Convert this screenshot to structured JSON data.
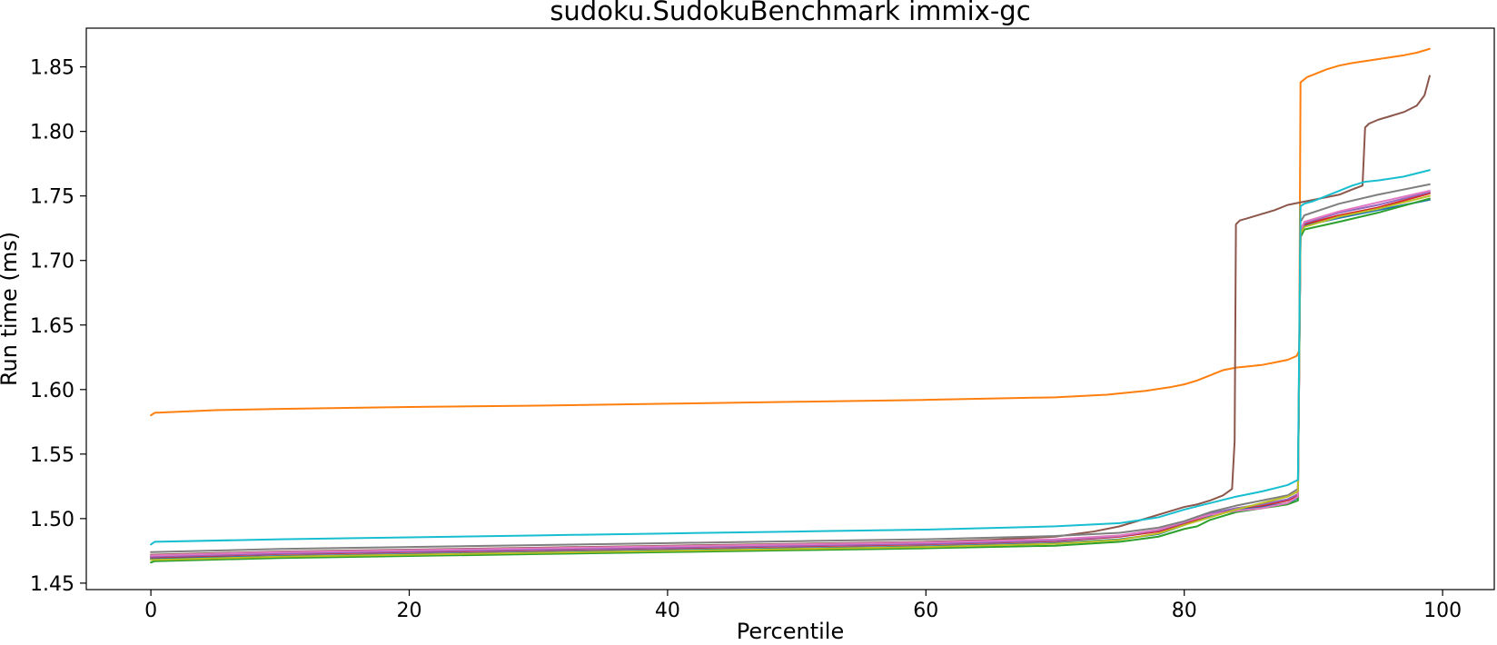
{
  "chart_data": {
    "type": "line",
    "title": "sudoku.SudokuBenchmark immix-gc",
    "xlabel": "Percentile",
    "ylabel": "Run time (ms)",
    "xlim": [
      -5,
      104
    ],
    "ylim": [
      1.445,
      1.88
    ],
    "x_ticks": [
      0,
      20,
      40,
      60,
      80,
      100
    ],
    "y_ticks": [
      1.45,
      1.5,
      1.55,
      1.6,
      1.65,
      1.7,
      1.75,
      1.8,
      1.85
    ],
    "x_tick_labels": [
      "0",
      "20",
      "40",
      "60",
      "80",
      "100"
    ],
    "y_tick_labels": [
      "1.45",
      "1.50",
      "1.55",
      "1.60",
      "1.65",
      "1.70",
      "1.75",
      "1.80",
      "1.85"
    ],
    "grid": false,
    "legend": "none",
    "series": [
      {
        "color": "#1f77b4",
        "points": [
          [
            0,
            1.469
          ],
          [
            10,
            1.471
          ],
          [
            20,
            1.4725
          ],
          [
            30,
            1.474
          ],
          [
            40,
            1.4755
          ],
          [
            50,
            1.477
          ],
          [
            60,
            1.4785
          ],
          [
            70,
            1.481
          ],
          [
            75,
            1.484
          ],
          [
            78,
            1.488
          ],
          [
            80,
            1.495
          ],
          [
            82,
            1.502
          ],
          [
            84,
            1.507
          ],
          [
            86,
            1.509
          ],
          [
            88,
            1.512
          ],
          [
            88.8,
            1.516
          ],
          [
            89,
            1.72
          ],
          [
            89.3,
            1.727
          ],
          [
            92,
            1.733
          ],
          [
            95,
            1.739
          ],
          [
            99,
            1.747
          ]
        ]
      },
      {
        "color": "#ff7f0e",
        "points": [
          [
            0,
            1.58
          ],
          [
            0.3,
            1.582
          ],
          [
            5,
            1.584
          ],
          [
            10,
            1.585
          ],
          [
            20,
            1.5865
          ],
          [
            30,
            1.5875
          ],
          [
            40,
            1.589
          ],
          [
            50,
            1.5905
          ],
          [
            60,
            1.592
          ],
          [
            70,
            1.594
          ],
          [
            74,
            1.596
          ],
          [
            77,
            1.599
          ],
          [
            79,
            1.602
          ],
          [
            80,
            1.604
          ],
          [
            81,
            1.607
          ],
          [
            82,
            1.611
          ],
          [
            83,
            1.615
          ],
          [
            84,
            1.617
          ],
          [
            85,
            1.618
          ],
          [
            86,
            1.619
          ],
          [
            87,
            1.621
          ],
          [
            88,
            1.623
          ],
          [
            88.7,
            1.626
          ],
          [
            88.9,
            1.63
          ],
          [
            89,
            1.838
          ],
          [
            89.5,
            1.842
          ],
          [
            90,
            1.844
          ],
          [
            91,
            1.848
          ],
          [
            92,
            1.851
          ],
          [
            93,
            1.853
          ],
          [
            95,
            1.856
          ],
          [
            97,
            1.859
          ],
          [
            98,
            1.861
          ],
          [
            99,
            1.864
          ]
        ]
      },
      {
        "color": "#2ca02c",
        "points": [
          [
            0,
            1.466
          ],
          [
            0.3,
            1.467
          ],
          [
            10,
            1.4695
          ],
          [
            20,
            1.471
          ],
          [
            30,
            1.4725
          ],
          [
            40,
            1.474
          ],
          [
            50,
            1.4755
          ],
          [
            60,
            1.477
          ],
          [
            70,
            1.479
          ],
          [
            75,
            1.482
          ],
          [
            78,
            1.486
          ],
          [
            80,
            1.492
          ],
          [
            81,
            1.494
          ],
          [
            82,
            1.499
          ],
          [
            84,
            1.505
          ],
          [
            86,
            1.508
          ],
          [
            88,
            1.511
          ],
          [
            88.8,
            1.514
          ],
          [
            89,
            1.718
          ],
          [
            89.3,
            1.724
          ],
          [
            92,
            1.73
          ],
          [
            95,
            1.737
          ],
          [
            99,
            1.748
          ]
        ]
      },
      {
        "color": "#d62728",
        "points": [
          [
            0,
            1.47
          ],
          [
            10,
            1.4725
          ],
          [
            20,
            1.474
          ],
          [
            30,
            1.4755
          ],
          [
            40,
            1.477
          ],
          [
            50,
            1.4785
          ],
          [
            60,
            1.48
          ],
          [
            70,
            1.4825
          ],
          [
            75,
            1.486
          ],
          [
            78,
            1.49
          ],
          [
            80,
            1.496
          ],
          [
            82,
            1.503
          ],
          [
            84,
            1.508
          ],
          [
            86,
            1.51
          ],
          [
            88,
            1.514
          ],
          [
            88.8,
            1.518
          ],
          [
            89,
            1.722
          ],
          [
            89.3,
            1.728
          ],
          [
            92,
            1.735
          ],
          [
            95,
            1.741
          ],
          [
            99,
            1.752
          ]
        ]
      },
      {
        "color": "#9467bd",
        "points": [
          [
            0,
            1.4705
          ],
          [
            10,
            1.473
          ],
          [
            20,
            1.4745
          ],
          [
            30,
            1.476
          ],
          [
            40,
            1.4775
          ],
          [
            50,
            1.479
          ],
          [
            60,
            1.4805
          ],
          [
            70,
            1.483
          ],
          [
            75,
            1.4865
          ],
          [
            78,
            1.491
          ],
          [
            80,
            1.497
          ],
          [
            82,
            1.504
          ],
          [
            84,
            1.508
          ],
          [
            86,
            1.511
          ],
          [
            88,
            1.515
          ],
          [
            88.8,
            1.519
          ],
          [
            89,
            1.723
          ],
          [
            89.3,
            1.729
          ],
          [
            92,
            1.737
          ],
          [
            95,
            1.743
          ],
          [
            99,
            1.753
          ]
        ]
      },
      {
        "color": "#8c564b",
        "points": [
          [
            0,
            1.472
          ],
          [
            10,
            1.4745
          ],
          [
            20,
            1.476
          ],
          [
            30,
            1.4775
          ],
          [
            40,
            1.479
          ],
          [
            50,
            1.4805
          ],
          [
            60,
            1.482
          ],
          [
            65,
            1.4835
          ],
          [
            70,
            1.486
          ],
          [
            73,
            1.49
          ],
          [
            75,
            1.494
          ],
          [
            77,
            1.5
          ],
          [
            79,
            1.506
          ],
          [
            80,
            1.509
          ],
          [
            81,
            1.511
          ],
          [
            82,
            1.514
          ],
          [
            83,
            1.518
          ],
          [
            83.7,
            1.523
          ],
          [
            83.9,
            1.56
          ],
          [
            84,
            1.728
          ],
          [
            84.3,
            1.731
          ],
          [
            85,
            1.733
          ],
          [
            86,
            1.736
          ],
          [
            87,
            1.739
          ],
          [
            88,
            1.743
          ],
          [
            89,
            1.745
          ],
          [
            90,
            1.747
          ],
          [
            91,
            1.749
          ],
          [
            92,
            1.751
          ],
          [
            93,
            1.755
          ],
          [
            93.8,
            1.758
          ],
          [
            94,
            1.803
          ],
          [
            94.3,
            1.806
          ],
          [
            95,
            1.809
          ],
          [
            96,
            1.812
          ],
          [
            97,
            1.815
          ],
          [
            98,
            1.82
          ],
          [
            98.6,
            1.828
          ],
          [
            99,
            1.843
          ]
        ]
      },
      {
        "color": "#e377c2",
        "points": [
          [
            0,
            1.4715
          ],
          [
            10,
            1.474
          ],
          [
            20,
            1.4755
          ],
          [
            30,
            1.477
          ],
          [
            40,
            1.4785
          ],
          [
            50,
            1.48
          ],
          [
            60,
            1.4815
          ],
          [
            70,
            1.484
          ],
          [
            75,
            1.487
          ],
          [
            78,
            1.4915
          ],
          [
            80,
            1.4975
          ],
          [
            82,
            1.503
          ],
          [
            84,
            1.506
          ],
          [
            86,
            1.508
          ],
          [
            88,
            1.512
          ],
          [
            88.8,
            1.517
          ],
          [
            89,
            1.724
          ],
          [
            89.3,
            1.73
          ],
          [
            92,
            1.738
          ],
          [
            95,
            1.745
          ],
          [
            99,
            1.754
          ]
        ]
      },
      {
        "color": "#7f7f7f",
        "points": [
          [
            0,
            1.474
          ],
          [
            10,
            1.4765
          ],
          [
            20,
            1.478
          ],
          [
            30,
            1.4795
          ],
          [
            40,
            1.481
          ],
          [
            50,
            1.4825
          ],
          [
            60,
            1.484
          ],
          [
            70,
            1.4865
          ],
          [
            75,
            1.489
          ],
          [
            78,
            1.493
          ],
          [
            80,
            1.498
          ],
          [
            82,
            1.505
          ],
          [
            84,
            1.51
          ],
          [
            86,
            1.514
          ],
          [
            88,
            1.518
          ],
          [
            88.8,
            1.523
          ],
          [
            89,
            1.73
          ],
          [
            89.3,
            1.735
          ],
          [
            92,
            1.744
          ],
          [
            95,
            1.751
          ],
          [
            99,
            1.759
          ]
        ]
      },
      {
        "color": "#bcbd22",
        "points": [
          [
            0,
            1.468
          ],
          [
            10,
            1.4705
          ],
          [
            20,
            1.472
          ],
          [
            30,
            1.4735
          ],
          [
            40,
            1.475
          ],
          [
            50,
            1.4765
          ],
          [
            60,
            1.478
          ],
          [
            70,
            1.4805
          ],
          [
            75,
            1.4835
          ],
          [
            78,
            1.4885
          ],
          [
            80,
            1.495
          ],
          [
            82,
            1.501
          ],
          [
            84,
            1.507
          ],
          [
            86,
            1.512
          ],
          [
            88,
            1.517
          ],
          [
            88.8,
            1.521
          ],
          [
            89,
            1.721
          ],
          [
            89.3,
            1.726
          ],
          [
            92,
            1.734
          ],
          [
            95,
            1.74
          ],
          [
            99,
            1.75
          ]
        ]
      },
      {
        "color": "#17becf",
        "points": [
          [
            0,
            1.48
          ],
          [
            0.3,
            1.482
          ],
          [
            10,
            1.484
          ],
          [
            20,
            1.4855
          ],
          [
            30,
            1.487
          ],
          [
            40,
            1.4885
          ],
          [
            50,
            1.49
          ],
          [
            60,
            1.4915
          ],
          [
            70,
            1.494
          ],
          [
            75,
            1.4965
          ],
          [
            78,
            1.501
          ],
          [
            80,
            1.507
          ],
          [
            82,
            1.512
          ],
          [
            84,
            1.517
          ],
          [
            86,
            1.521
          ],
          [
            88,
            1.526
          ],
          [
            88.8,
            1.53
          ],
          [
            89,
            1.742
          ],
          [
            89.3,
            1.744
          ],
          [
            90,
            1.746
          ],
          [
            91,
            1.75
          ],
          [
            92,
            1.754
          ],
          [
            93,
            1.758
          ],
          [
            94,
            1.761
          ],
          [
            95,
            1.762
          ],
          [
            97,
            1.765
          ],
          [
            99,
            1.77
          ]
        ]
      }
    ]
  }
}
